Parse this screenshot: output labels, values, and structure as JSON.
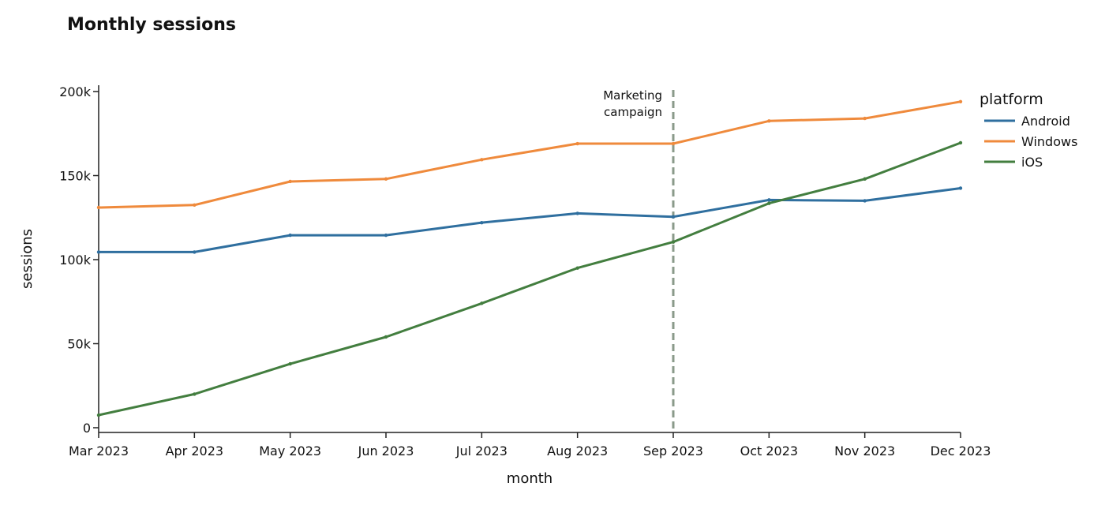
{
  "chart_data": {
    "type": "line",
    "title": "Monthly sessions",
    "xlabel": "month",
    "ylabel": "sessions",
    "categories": [
      "Mar 2023",
      "Apr 2023",
      "May 2023",
      "Jun 2023",
      "Jul 2023",
      "Aug 2023",
      "Sep 2023",
      "Oct 2023",
      "Nov 2023",
      "Dec 2023"
    ],
    "ylim": [
      0,
      200000
    ],
    "yticks": [
      0,
      50000,
      100000,
      150000,
      200000
    ],
    "ytick_labels": [
      "0",
      "50k",
      "100k",
      "150k",
      "200k"
    ],
    "grid": false,
    "legend": {
      "title": "platform",
      "placement": "top-right"
    },
    "series": [
      {
        "name": "Android",
        "color": "#2f6f9f",
        "values": [
          104500,
          104500,
          114500,
          114500,
          122000,
          127500,
          125500,
          135500,
          135000,
          142500
        ]
      },
      {
        "name": "Windows",
        "color": "#ef8a3c",
        "values": [
          131000,
          132500,
          146500,
          148000,
          159500,
          169000,
          169000,
          182500,
          184000,
          194000
        ]
      },
      {
        "name": "iOS",
        "color": "#437e3f",
        "values": [
          7500,
          20000,
          38000,
          54000,
          74000,
          95000,
          110500,
          133500,
          148000,
          169500
        ]
      }
    ],
    "annotations": [
      {
        "x": "Sep 2023",
        "line": "vertical-dashed",
        "color": "#8a9a8a",
        "text_lines": [
          "Marketing",
          "campaign"
        ]
      }
    ]
  }
}
